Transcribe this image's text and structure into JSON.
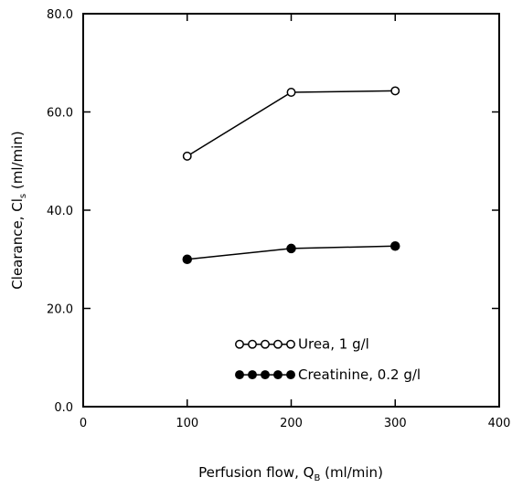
{
  "chart_data": {
    "type": "line",
    "xlabel": "Perfusion flow, Q_B (ml/min)",
    "xlabel_main": "Perfusion flow, Q",
    "xlabel_sub": "B",
    "xlabel_tail": " (ml/min)",
    "ylabel": "Clearance, Cl_s (ml/min)",
    "ylabel_main": "Clearance, Cl",
    "ylabel_sub": "s",
    "ylabel_tail": " (ml/min)",
    "xlim": [
      0,
      400
    ],
    "ylim": [
      0,
      80
    ],
    "xticks": [
      0,
      100,
      200,
      300,
      400
    ],
    "xtick_labels": [
      "0",
      "100",
      "200",
      "300",
      "400"
    ],
    "yticks": [
      0,
      20,
      40,
      60,
      80
    ],
    "ytick_labels": [
      "0.0",
      "20.0",
      "40.0",
      "60.0",
      "80.0"
    ],
    "grid": false,
    "legend_position": "bottom-right",
    "series": [
      {
        "name": "Urea, 1 g/l",
        "marker": "open-circle",
        "x": [
          100,
          200,
          300
        ],
        "y": [
          51,
          64,
          64.3
        ]
      },
      {
        "name": "Creatinine, 0.2 g/l",
        "marker": "filled-circle",
        "x": [
          100,
          200,
          300
        ],
        "y": [
          30,
          32.2,
          32.7
        ]
      }
    ]
  }
}
